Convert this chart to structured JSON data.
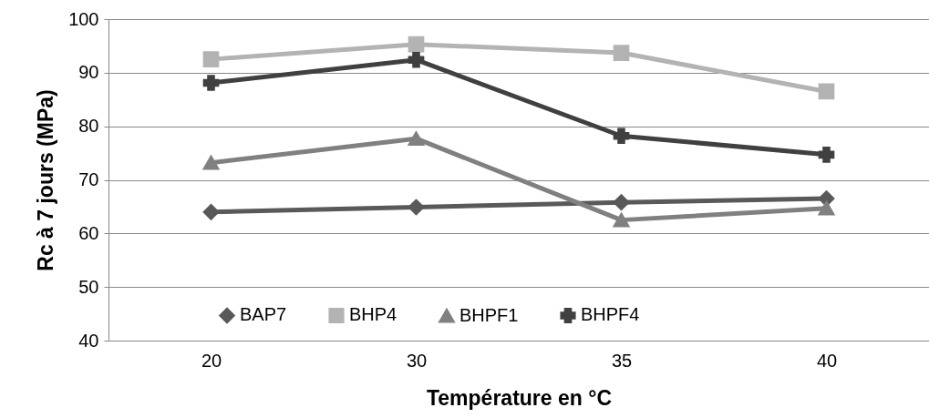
{
  "chart_data": {
    "type": "line",
    "xlabel": "Température en °C",
    "ylabel": "Rc à 7 jours (MPa)",
    "categories": [
      "20",
      "30",
      "35",
      "40"
    ],
    "ylim": [
      40,
      100
    ],
    "yticks": [
      40,
      50,
      60,
      70,
      80,
      90,
      100
    ],
    "grid": "y",
    "legend": "bottom",
    "line_style": "solid",
    "series": [
      {
        "name": "BAP7",
        "color": "#595959",
        "marker": "diamond",
        "values": [
          64.0,
          64.9,
          65.8,
          66.5
        ]
      },
      {
        "name": "BHP4",
        "color": "#b3b3b3",
        "marker": "square",
        "values": [
          92.5,
          95.3,
          93.7,
          86.5
        ]
      },
      {
        "name": "BHPF1",
        "color": "#808080",
        "marker": "triangle",
        "values": [
          73.2,
          77.7,
          62.5,
          64.7
        ]
      },
      {
        "name": "BHPF4",
        "color": "#404040",
        "marker": "cross",
        "values": [
          88.1,
          92.4,
          78.2,
          74.7
        ]
      }
    ]
  }
}
